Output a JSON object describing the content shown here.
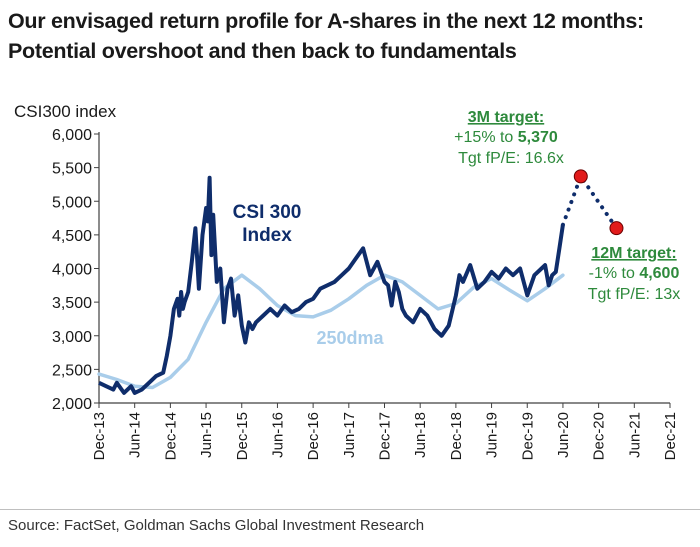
{
  "title_line1": "Our envisaged return profile for A-shares in the next 12 months:",
  "title_line2": "Potential overshoot and then back to fundamentals",
  "source": "Source: FactSet, Goldman Sachs Global Investment Research",
  "colors": {
    "csi300": "#0f2d6b",
    "dma250": "#a9cdea",
    "target_green": "#2e8a3c",
    "target_dot": "#e11b1b",
    "axis": "#404040"
  },
  "chart_data": {
    "type": "line",
    "title": "",
    "ylabel": "CSI300 index",
    "xlabel": "",
    "ylim": [
      2000,
      6000
    ],
    "y_ticks": [
      "2,000",
      "2,500",
      "3,000",
      "3,500",
      "4,000",
      "4,500",
      "5,000",
      "5,500",
      "6,000"
    ],
    "y_tick_values": [
      2000,
      2500,
      3000,
      3500,
      4000,
      4500,
      5000,
      5500,
      6000
    ],
    "x_ticks": [
      "Dec-13",
      "Jun-14",
      "Dec-14",
      "Jun-15",
      "Dec-15",
      "Jun-16",
      "Dec-16",
      "Jun-17",
      "Dec-17",
      "Jun-18",
      "Dec-18",
      "Jun-19",
      "Dec-19",
      "Jun-20",
      "Dec-20",
      "Jun-21",
      "Dec-21"
    ],
    "series": [
      {
        "name": "CSI 300 Index",
        "label_line1": "CSI 300",
        "label_line2": "Index",
        "x": [
          0,
          0.2,
          0.4,
          0.5,
          0.7,
          0.9,
          1.0,
          1.2,
          1.4,
          1.6,
          1.8,
          1.9,
          2.0,
          2.1,
          2.2,
          2.25,
          2.3,
          2.35,
          2.4,
          2.5,
          2.6,
          2.7,
          2.8,
          2.9,
          3.0,
          3.05,
          3.1,
          3.15,
          3.2,
          3.3,
          3.4,
          3.5,
          3.6,
          3.7,
          3.8,
          3.9,
          4.0,
          4.1,
          4.2,
          4.3,
          4.4,
          4.6,
          4.8,
          5.0,
          5.2,
          5.4,
          5.6,
          5.8,
          6.0,
          6.2,
          6.4,
          6.6,
          6.8,
          7.0,
          7.2,
          7.4,
          7.6,
          7.8,
          8.0,
          8.1,
          8.2,
          8.3,
          8.4,
          8.5,
          8.6,
          8.8,
          9.0,
          9.2,
          9.4,
          9.6,
          9.8,
          10.0,
          10.1,
          10.2,
          10.4,
          10.6,
          10.8,
          11.0,
          11.2,
          11.4,
          11.6,
          11.8,
          12.0,
          12.2,
          12.4,
          12.5,
          12.6,
          12.7,
          12.8,
          12.9,
          13.0
        ],
        "values": [
          2300,
          2250,
          2200,
          2300,
          2150,
          2250,
          2150,
          2200,
          2300,
          2400,
          2450,
          2700,
          3000,
          3400,
          3550,
          3300,
          3650,
          3400,
          3500,
          3650,
          4100,
          4600,
          3700,
          4500,
          4900,
          4700,
          5350,
          4200,
          4800,
          3800,
          4000,
          3200,
          3700,
          3850,
          3300,
          3600,
          3150,
          2900,
          3200,
          3100,
          3200,
          3300,
          3400,
          3300,
          3450,
          3350,
          3400,
          3500,
          3550,
          3700,
          3750,
          3800,
          3900,
          4000,
          4150,
          4300,
          3900,
          4100,
          3800,
          3750,
          3450,
          3800,
          3650,
          3400,
          3300,
          3200,
          3400,
          3300,
          3100,
          3000,
          3150,
          3600,
          3900,
          3800,
          4050,
          3700,
          3800,
          3950,
          3850,
          4000,
          3900,
          4000,
          3600,
          3900,
          4000,
          4050,
          3750,
          3900,
          3950,
          4300,
          4650
        ]
      },
      {
        "name": "250dma",
        "label": "250dma",
        "x": [
          0,
          0.5,
          1.0,
          1.5,
          2.0,
          2.5,
          3.0,
          3.5,
          4.0,
          4.5,
          5.0,
          5.5,
          6.0,
          6.5,
          7.0,
          7.5,
          8.0,
          8.5,
          9.0,
          9.5,
          10.0,
          10.5,
          11.0,
          11.5,
          12.0,
          12.5,
          13.0
        ],
        "values": [
          2430,
          2350,
          2250,
          2230,
          2380,
          2650,
          3200,
          3700,
          3900,
          3700,
          3450,
          3300,
          3280,
          3380,
          3550,
          3750,
          3900,
          3800,
          3600,
          3400,
          3480,
          3720,
          3850,
          3680,
          3520,
          3700,
          3900
        ]
      },
      {
        "name": "Projection",
        "style": "dotted",
        "x": [
          13.0,
          13.5,
          14.5
        ],
        "values": [
          4650,
          5370,
          4600
        ]
      }
    ],
    "annotations": [
      {
        "id": "target_3m",
        "x": 13.5,
        "value": 5370,
        "heading": "3M target:",
        "line2_prefix": "+15% to ",
        "line2_value": "5,370",
        "line3": "Tgt fP/E: 16.6x"
      },
      {
        "id": "target_12m",
        "x": 14.5,
        "value": 4600,
        "heading": "12M target:",
        "line2_prefix": "-1% to ",
        "line2_value": "4,600",
        "line3": "Tgt fP/E: 13x"
      }
    ]
  }
}
